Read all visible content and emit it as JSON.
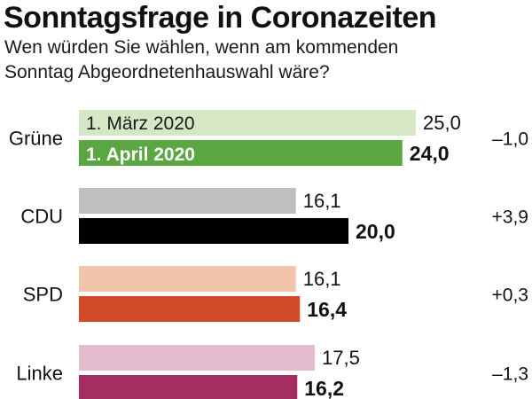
{
  "chart_data": {
    "type": "bar",
    "title": "Sonntagsfrage in Coronazeiten",
    "subtitle_lines": [
      "Wen würden Sie wählen, wenn am kommenden",
      "Sonntag Abgeordnetenhauswahl wäre?"
    ],
    "categories": [
      "Grüne",
      "CDU",
      "SPD",
      "Linke"
    ],
    "series": [
      {
        "name": "1. März 2020",
        "values": [
          25.0,
          16.1,
          16.1,
          17.5
        ],
        "labels": [
          "25,0",
          "16,1",
          "16,1",
          "17,5"
        ]
      },
      {
        "name": "1. April 2020",
        "values": [
          24.0,
          20.0,
          16.4,
          16.2
        ],
        "labels": [
          "24,0",
          "20,0",
          "16,4",
          "16,2"
        ]
      }
    ],
    "changes": [
      "–1,0",
      "+3,9",
      "+0,3",
      "–1,3"
    ],
    "colors": {
      "march": [
        "#d6e7c5",
        "#bfbfbf",
        "#f3c4ac",
        "#e3bccd"
      ],
      "april": [
        "#5aa741",
        "#000000",
        "#d34a2b",
        "#a52d62"
      ]
    },
    "xlim": [
      0,
      25
    ]
  }
}
